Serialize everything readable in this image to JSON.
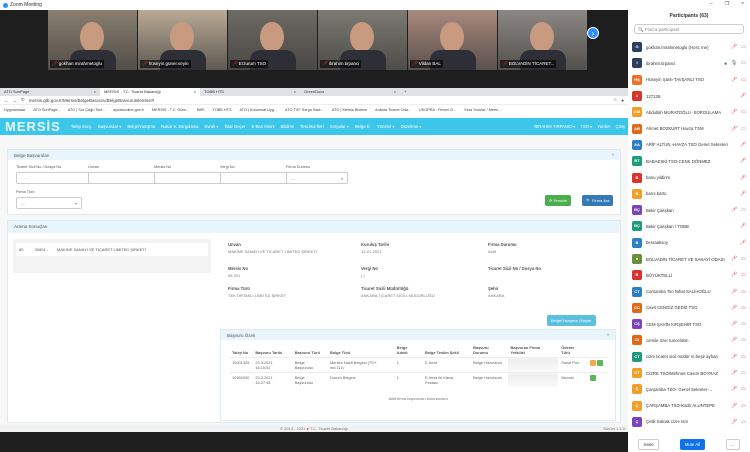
{
  "window": {
    "title": "Zoom Meeting"
  },
  "videos": [
    {
      "name": "gokhan.mirahmetoglu",
      "bg": "#8a7f70"
    },
    {
      "name": "hüseyin.güner.seyin",
      "bg": "#b9aa95"
    },
    {
      "name": "Erzurum TSO",
      "bg": "#6e6a64"
    },
    {
      "name": "ibrahim.tirpanci",
      "bg": "#7c7a72"
    },
    {
      "name": "Vildan BAL",
      "bg": "#a98a7e"
    },
    {
      "name": "BOLVADİN TİCARET...",
      "bg": "#8c8784"
    }
  ],
  "browser": {
    "tabs": [
      "ATO SunPage",
      "MERSİS - T.C. Ticaret Bakanlığı",
      "TOBB HTS",
      "GreenDocs"
    ],
    "url": "mersis.gtb.gov.tr/Mersis/BelgeBasvuru/BelgeBasvuruIslemleri#",
    "bookmarks": [
      "Uygulamalar",
      "ATO SunPage -",
      "ATO | Sor Çağrı Sist...",
      "ayudaonline.gov.tr",
      "MERSİS - T.C. Güm...",
      "BBS",
      "TOBB HTS",
      "ATO | Kurumsal Uyg...",
      "ATO TVF Sorgu Sate...",
      "ATO | Mersis Bildirim",
      "Ankara Ticaret Oda...",
      "UKOPRA - Resmi G...",
      "Sera Sorular / Mersi..."
    ]
  },
  "mersis": {
    "logo": "MERSİS",
    "menu": [
      "Talep Sorg.",
      "Başvurular ▾",
      "Belge/Yazışma",
      "Nakar V. Sorgulama",
      "Evrak ▾",
      "İhtar Geçer",
      "E-Ban Metni",
      "Bildirim",
      "Tescilsiz İleri",
      "Sorgular ▾",
      "Belge D.",
      "Yöneler ▾",
      "Düzeltme ▾"
    ],
    "user": "İBRAHIM TIRPANCI ▾",
    "role": "TSO ▾",
    "help": "Yardım",
    "exit": "Çıkış"
  },
  "search_panel": {
    "title": "Belge Başvuruları",
    "fields": [
      {
        "label": "Ticaret Sicil No / Dosya No",
        "value": "· · ·"
      },
      {
        "label": "Unvan",
        "value": ""
      },
      {
        "label": "Mersis No",
        "value": ""
      },
      {
        "label": "Vergi No",
        "value": ""
      },
      {
        "label": "Firma Durumu",
        "value": "---"
      },
      {
        "label": "Firma Türü",
        "value": "---"
      }
    ],
    "clear_label": "Temizle",
    "search_label": "Firma Ara"
  },
  "results": {
    "title": "Arama Sonuçları",
    "list_item": "80          30801 -        MAKİNE SANAYİ VE TİCARET LİMİTED ŞİRKETİ",
    "details": [
      {
        "label": "Unvan",
        "value": "MAKİNE SANAYİ VE TİCARET LİMİTED ŞİRKETİ"
      },
      {
        "label": "Kuruluş Tarihi",
        "value": "12-01-2021"
      },
      {
        "label": "Firma Durumu",
        "value": "Aktif"
      },
      {
        "label": "Mersis No",
        "value": "08          301"
      },
      {
        "label": "Vergi No",
        "value": "(         )"
      },
      {
        "label": "Ticaret Sicil No / Dosya No",
        "value": ""
      },
      {
        "label": "Firma Türü",
        "value": "TEK ORTAKLI LİMİTED ŞİRKET"
      },
      {
        "label": "Ticaret Sicili Müdürlüğü",
        "value": "ANKARA TİCARET SİCİLİ MÜDÜRLÜĞÜ"
      },
      {
        "label": "Şehir",
        "value": "ANKARA"
      }
    ],
    "action_label": "Belge/Yazışma Oluştur"
  },
  "summary": {
    "title": "Başvuru Özeti",
    "columns": [
      "Talep No",
      "Başvuru Tarihi",
      "Başvuru Türü",
      "Belge Türü",
      "Belge Adedi",
      "Belge Teslim Şekli",
      "Başvuru Durumu",
      "Başvuran Firma Yetkilisi",
      "Ödeme Türü"
    ],
    "rows": [
      [
        "10901325",
        "23.3.2021 16:15:51",
        "Belge Başvurusu",
        "Merkez Nakit Belgesi (TSY md.111)",
        "1",
        "E-İmza",
        "Belge Hazırlandı",
        "",
        "Sanal Pos"
      ],
      [
        "10960930",
        "23.3.2021 14:27:48",
        "Belge Başvurusu",
        "Durum Belgesi",
        "1",
        "E-İmza ile Kanal Postası",
        "Belge Hazırlandı",
        "",
        "Manuel"
      ]
    ],
    "empty_note": "Aktif firma başvurusu bulunamadı"
  },
  "footer": {
    "copyright": "© 2013 - 2021",
    "org": "T.C. Ticaret Bakanlığı",
    "version": "Sürüm 1.4.0"
  },
  "participants": {
    "title": "Participants (63)",
    "search_placeholder": "Find a participant",
    "invite": "Invite",
    "mute_all": "Mute All",
    "more": "...",
    "items": [
      {
        "initials": "G",
        "color": "#2d3e5e",
        "name": "gokhan.mirahmetoglu (Host, me)",
        "video": "on"
      },
      {
        "initials": "I",
        "color": "#2d3e5e",
        "name": "ibrahim.tirpanci",
        "video": "on",
        "share": true,
        "unmuted": true
      },
      {
        "initials": "HŞ",
        "color": "#e8712c",
        "name": "Hüseyin Şanlı-TAVŞANLI TSO",
        "video": "off"
      },
      {
        "initials": "1",
        "color": "#d6342c",
        "name": "127139",
        "video": ""
      },
      {
        "initials": "AM",
        "color": "#f0a02a",
        "name": "Abdullah MURATOĞLU -SORGULAMA",
        "video": "off"
      },
      {
        "initials": "AB",
        "color": "#e06a1c",
        "name": "Ahmet BOZKURT Havza TSM",
        "video": "on"
      },
      {
        "initials": "AA",
        "color": "#2f7fc4",
        "name": "ARİF ALTUN -HAVZA TSO Genel Sekreteri",
        "video": ""
      },
      {
        "initials": "BT",
        "color": "#1f9a7c",
        "name": "BABAESKİ TSO-CENK DÖNMEZ",
        "video": ""
      },
      {
        "initials": "B",
        "color": "#d6342c",
        "name": "banu.yildirim",
        "video": ""
      },
      {
        "initials": "B",
        "color": "#f0a02a",
        "name": "barıs.bartu",
        "video": ""
      },
      {
        "initials": "BÇ",
        "color": "#7b44b8",
        "name": "Bekir Çalışkan",
        "video": "on"
      },
      {
        "initials": "BÇ",
        "color": "#1f9a7c",
        "name": "Bekir Çalışkan / TOBB",
        "video": ""
      },
      {
        "initials": "B",
        "color": "#2f7fc4",
        "name": "besraaksoy",
        "video": ""
      },
      {
        "initials": "●",
        "color": "#6b8e3a",
        "name": "BOLVADİN TİCARET VE SANAYİ ODASI",
        "video": "on"
      },
      {
        "initials": "B",
        "color": "#d6342c",
        "name": "BÜYÜKTELLİ",
        "video": "off"
      },
      {
        "initials": "CT",
        "color": "#2f7fc4",
        "name": "Carsamba Tso Nihat SALİHOĞLU",
        "video": "off"
      },
      {
        "initials": "CC",
        "color": "#e06a1c",
        "name": "Cavit CENGİZ GEDİZ TSO",
        "video": "off"
      },
      {
        "initials": "CŞ",
        "color": "#7b44b8",
        "name": "CEM ŞAHİN KIRŞEHİR TSO",
        "video": "on"
      },
      {
        "initials": "Ct",
        "color": "#e06a1c",
        "name": "cemile özer tuncelitsm",
        "video": "on"
      },
      {
        "initials": "CT",
        "color": "#1f9a7c",
        "name": "cizre ticaret sicil müdür m.beşir ayhan",
        "video": "off"
      },
      {
        "initials": "CT",
        "color": "#f0a02a",
        "name": "CİZRE TSO/Mehmet Casım BOYRAZ",
        "video": "on"
      },
      {
        "initials": "Ç",
        "color": "#f0a02a",
        "name": "Çarşamba TSO- Genel Sekreter-...",
        "video": "off"
      },
      {
        "initials": "Ç",
        "color": "#f0a02a",
        "name": "ÇARŞAMBA TSO-Kadir ALUNTEPE",
        "video": "off"
      },
      {
        "initials": "Ç",
        "color": "#7b44b8",
        "name": "Çelik Salcak cizre tsm",
        "video": "on"
      }
    ]
  }
}
